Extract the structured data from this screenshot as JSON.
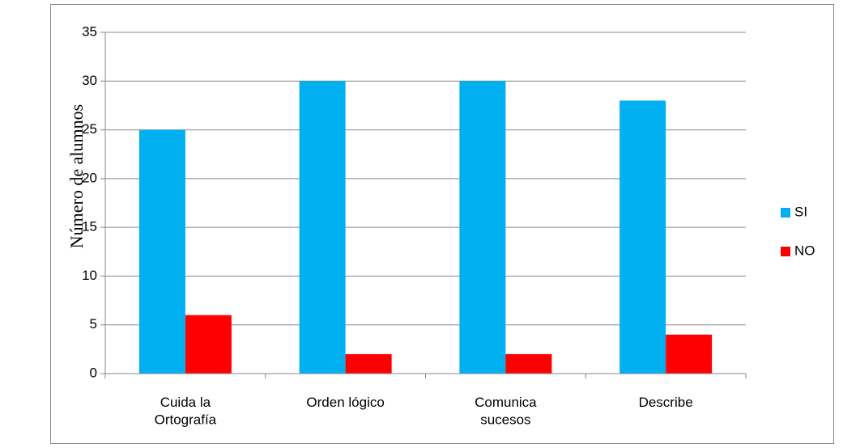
{
  "chart_data": {
    "type": "bar",
    "y_label": "Número de alumnos",
    "categories": [
      "Cuida la Ortografía",
      "Orden lógico",
      "Comunica sucesos",
      "Describe"
    ],
    "series": [
      {
        "name": "SI",
        "color": "#00b0f0",
        "values": [
          25,
          30,
          30,
          28
        ]
      },
      {
        "name": "NO",
        "color": "#ff0000",
        "values": [
          6,
          2,
          2,
          4
        ]
      }
    ],
    "ylim": [
      0,
      35
    ],
    "yticks": [
      0,
      5,
      10,
      15,
      20,
      25,
      30,
      35
    ],
    "grid": true,
    "legend": "right"
  }
}
